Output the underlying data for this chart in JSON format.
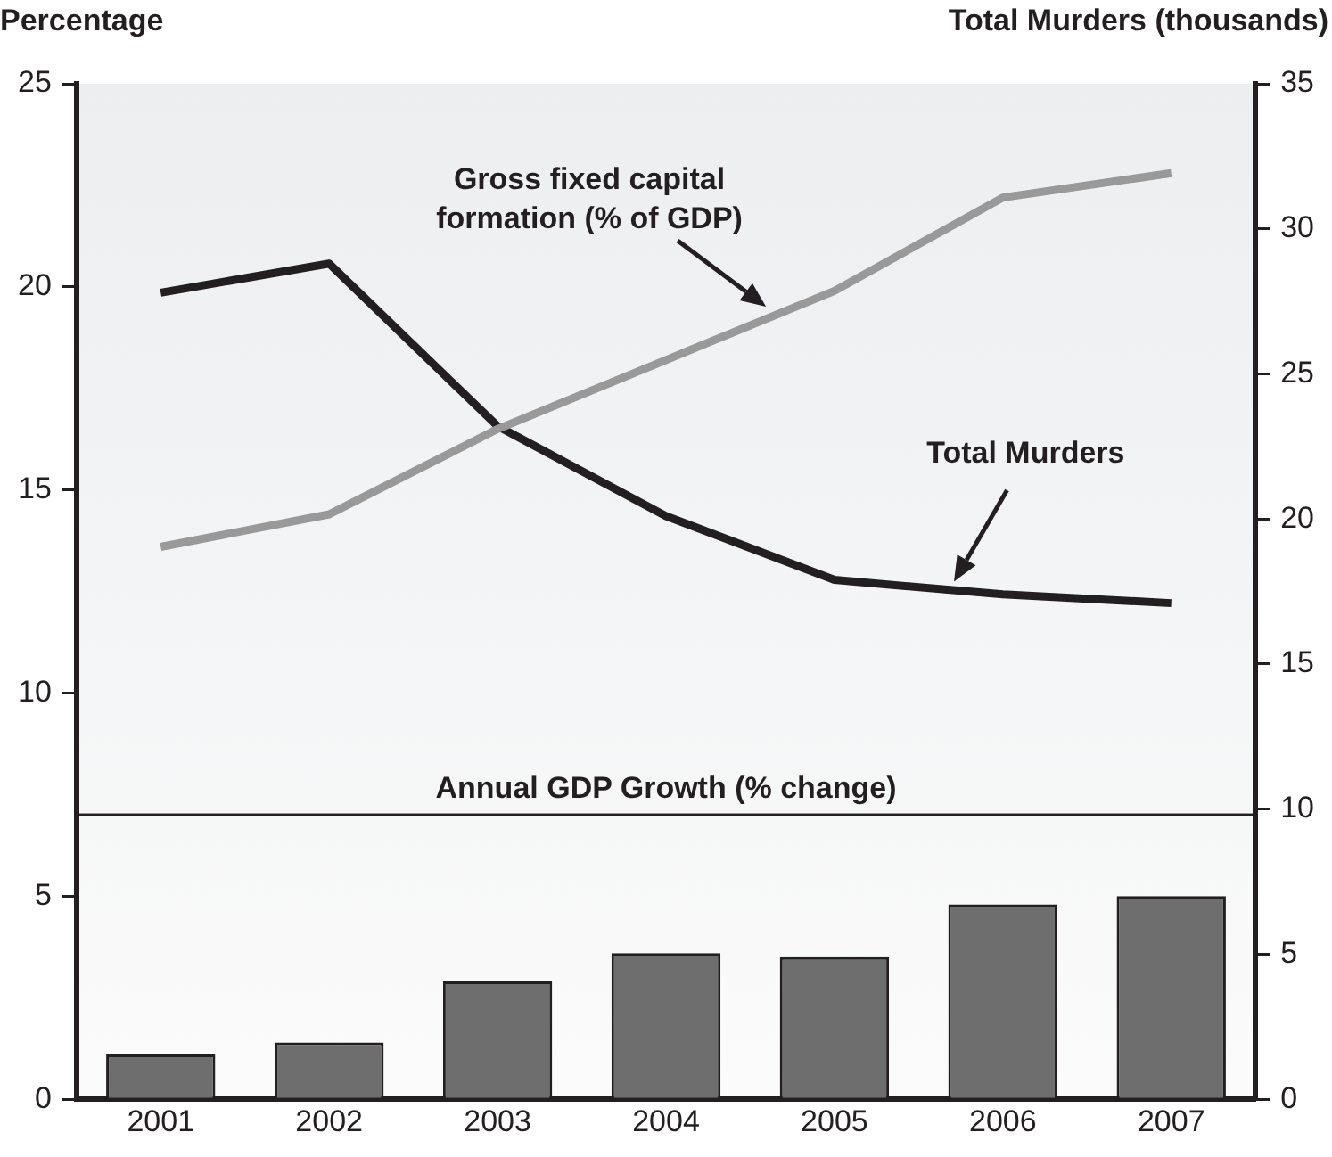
{
  "chart_data": {
    "type": "bar",
    "ylabel": "Percentage",
    "y2label": "Total Murders (thousands)",
    "categories": [
      "2001",
      "2002",
      "2003",
      "2004",
      "2005",
      "2006",
      "2007"
    ],
    "series": [
      {
        "color": "#6e6e6e",
        "values": [
          1.1,
          1.4,
          2.9,
          3.6,
          3.5,
          4.8,
          5.0
        ]
      },
      {
        "type": "line",
        "color": "#999999",
        "values": [
          13.6,
          14.4,
          16.5,
          18.2,
          19.9,
          22.2,
          22.8
        ]
      },
      {
        "type": "line",
        "axis": "y2",
        "color": "#231f20",
        "values": [
          27.8,
          28.8,
          23.2,
          20.1,
          17.9,
          17.4,
          17.1
        ]
      }
    ],
    "annotations": [
      "Gross fixed capital formation (% of GDP)",
      "Total Murders"
    ],
    "ref_lines": [
      {
        "axis": "y",
        "value": 7,
        "label": "Annual GDP Growth (% change)",
        "color": "#231f20"
      }
    ],
    "ylim": [
      0,
      25
    ],
    "yticks": [
      0,
      5,
      10,
      15,
      20,
      25
    ],
    "y2lim": [
      0,
      35
    ],
    "y2ticks": [
      0,
      5,
      10,
      15,
      20,
      25,
      30,
      35
    ],
    "grid": false,
    "legend": false,
    "marker": "none",
    "line_style": "solid"
  }
}
